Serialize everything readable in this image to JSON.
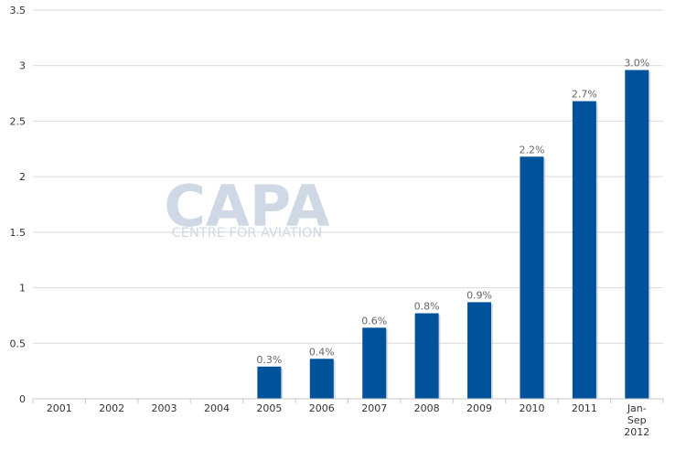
{
  "chart_data": {
    "type": "bar",
    "categories": [
      "2001",
      "2002",
      "2003",
      "2004",
      "2005",
      "2006",
      "2007",
      "2008",
      "2009",
      "2010",
      "2011",
      "Jan-Sep 2012"
    ],
    "series": [
      {
        "values": [
          0,
          0,
          0,
          0,
          0.29,
          0.36,
          0.64,
          0.77,
          0.87,
          2.18,
          2.68,
          2.96
        ],
        "labels": [
          "",
          "",
          "",
          "",
          "0.3%",
          "0.4%",
          "0.6%",
          "0.8%",
          "0.9%",
          "2.2%",
          "2.7%",
          "3.0%"
        ]
      }
    ],
    "ylim": [
      0,
      3.5
    ],
    "yticks": [
      0,
      0.5,
      1,
      1.5,
      2,
      2.5,
      3,
      3.5
    ],
    "ytick_labels": [
      "0",
      "0.5",
      "1",
      "1.5",
      "2",
      "2.5",
      "3",
      "3.5"
    ],
    "grid": true,
    "legend": "none",
    "title": "",
    "xlabel": "",
    "ylabel": ""
  },
  "watermark": {
    "logo_text": "CAPA",
    "tagline": "CENTRE FOR AVIATION"
  },
  "colors": {
    "bar": "#00529b",
    "grid": "#d9d9d9",
    "axis": "#c8c8c8",
    "tick_text": "#333333",
    "data_label": "#666666",
    "watermark": "#cfd9e6"
  }
}
